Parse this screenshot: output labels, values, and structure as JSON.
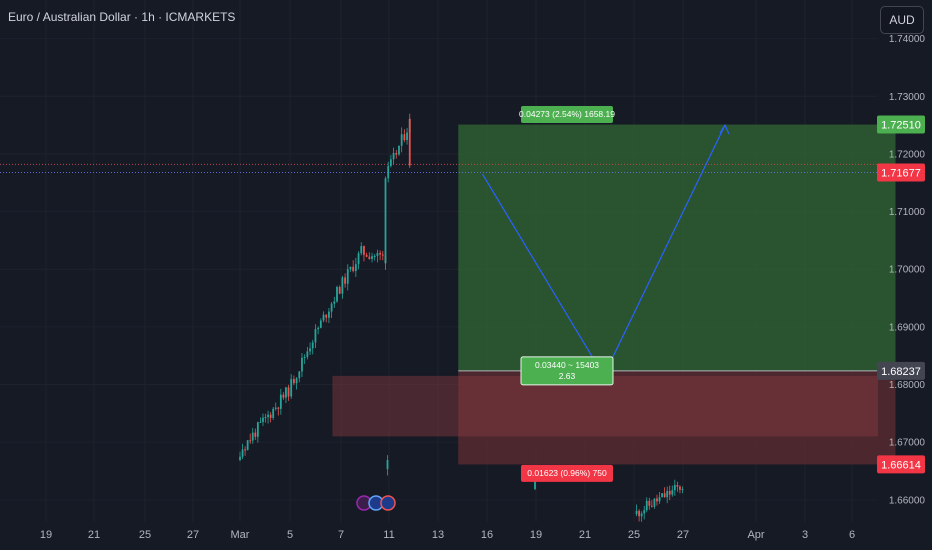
{
  "header": {
    "symbol_title": "Euro / Australian Dollar · 1h · ICMARKETS",
    "currency_button": "AUD"
  },
  "colors": {
    "background": "#161a25",
    "candle_up": "#26a69a",
    "candle_down": "#ef5350",
    "profit_zone": "#2e5f33",
    "loss_zone": "#5f2c32",
    "target_label": "#4caf50",
    "stop_label": "#f23645",
    "price_label": "#f23645",
    "entry_label": "#434651",
    "path_line": "#2962ff"
  },
  "chart_data": {
    "type": "candlestick",
    "instrument": "Euro / Australian Dollar",
    "timeframe": "1h",
    "exchange": "ICMARKETS",
    "x_ticks": [
      "19",
      "21",
      "25",
      "27",
      "Mar",
      "5",
      "7",
      "11",
      "13",
      "16",
      "19",
      "21",
      "25",
      "27",
      "Apr",
      "3",
      "6"
    ],
    "y_ticks": [
      "1.74000",
      "1.73000",
      "1.72000",
      "1.71000",
      "1.70000",
      "1.69000",
      "1.68000",
      "1.67000",
      "1.66000"
    ],
    "ylim": [
      1.6565,
      1.7415
    ],
    "price_series_approx": [
      {
        "date": "Feb 25",
        "price": 1.6575
      },
      {
        "date": "Feb 27",
        "price": 1.6625
      },
      {
        "date": "Mar 1",
        "price": 1.6685
      },
      {
        "date": "Mar 3",
        "price": 1.679
      },
      {
        "date": "Mar 4",
        "price": 1.688
      },
      {
        "date": "Mar 5",
        "price": 1.696
      },
      {
        "date": "Mar 6",
        "price": 1.703
      },
      {
        "date": "Mar 7",
        "price": 1.702
      },
      {
        "date": "Mar 7",
        "price": 1.716
      },
      {
        "date": "Mar 8",
        "price": 1.7255
      },
      {
        "date": "Mar 8",
        "price": 1.718
      }
    ],
    "price_axis_labels": [
      {
        "value": "1.72510",
        "kind": "target"
      },
      {
        "value": "1.71677",
        "kind": "current"
      },
      {
        "value": "1.68237",
        "kind": "entry"
      },
      {
        "value": "1.66614",
        "kind": "stop"
      }
    ],
    "position": {
      "side": "long",
      "entry": 1.68237,
      "target": 1.7251,
      "stop": 1.66614,
      "target_label": "0.04273 (2.54%) 1658.19",
      "entry_label_line1": "0.03440 ~ 15403",
      "entry_label_line2": "2.63",
      "stop_label": "0.01623 (0.96%) 750"
    },
    "demand_zone": {
      "top": 1.6815,
      "bottom": 1.671
    },
    "projection_path": [
      {
        "date": "Mar 11",
        "price": 1.7165
      },
      {
        "date": "Mar 16",
        "price": 1.6815
      },
      {
        "date": "Mar 21",
        "price": 1.725
      }
    ],
    "current_price": 1.71677,
    "dotted_line_price": 1.7182
  },
  "event_icons": [
    "event-icon",
    "eu-flag-icon",
    "au-flag-icon"
  ]
}
